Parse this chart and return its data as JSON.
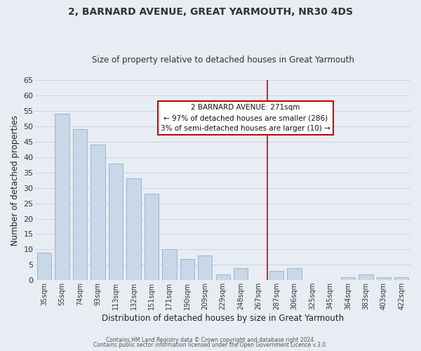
{
  "title": "2, BARNARD AVENUE, GREAT YARMOUTH, NR30 4DS",
  "subtitle": "Size of property relative to detached houses in Great Yarmouth",
  "xlabel": "Distribution of detached houses by size in Great Yarmouth",
  "ylabel": "Number of detached properties",
  "categories": [
    "35sqm",
    "55sqm",
    "74sqm",
    "93sqm",
    "113sqm",
    "132sqm",
    "151sqm",
    "171sqm",
    "190sqm",
    "209sqm",
    "229sqm",
    "248sqm",
    "267sqm",
    "287sqm",
    "306sqm",
    "325sqm",
    "345sqm",
    "364sqm",
    "383sqm",
    "403sqm",
    "422sqm"
  ],
  "values": [
    9,
    54,
    49,
    44,
    38,
    33,
    28,
    10,
    7,
    8,
    2,
    4,
    0,
    3,
    4,
    0,
    0,
    1,
    2,
    1,
    1
  ],
  "bar_color": "#c8d8e8",
  "bar_edge_color": "#a0b4c8",
  "marker_index": 12,
  "marker_color": "#cc0000",
  "annotation_title": "2 BARNARD AVENUE: 271sqm",
  "annotation_line1": "← 97% of detached houses are smaller (286)",
  "annotation_line2": "3% of semi-detached houses are larger (10) →",
  "annotation_box_color": "#ffffff",
  "annotation_box_edge": "#cc0000",
  "grid_color": "#c8d4e0",
  "background_color": "#e8edf4",
  "ylim": [
    0,
    65
  ],
  "yticks": [
    0,
    5,
    10,
    15,
    20,
    25,
    30,
    35,
    40,
    45,
    50,
    55,
    60,
    65
  ],
  "footer1": "Contains HM Land Registry data © Crown copyright and database right 2024.",
  "footer2": "Contains public sector information licensed under the Open Government Licence v.3.0."
}
